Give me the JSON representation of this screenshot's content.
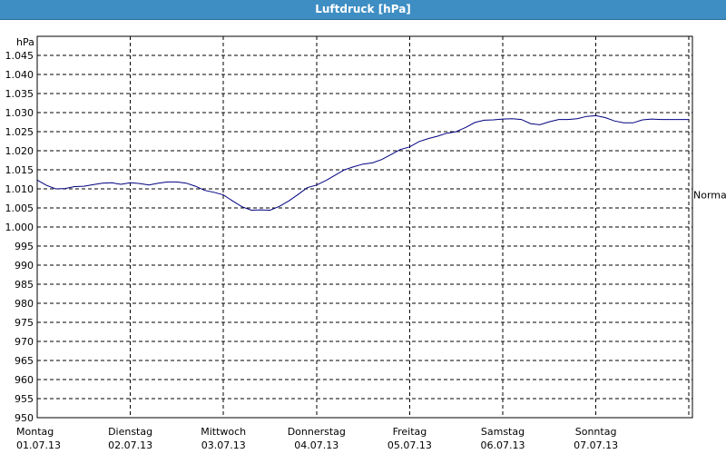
{
  "window": {
    "title": "Luftdruck [hPa]"
  },
  "chart_data": {
    "type": "line",
    "title": "Luftdruck [hPa]",
    "ylabel": "hPa",
    "ylim": [
      950,
      1050
    ],
    "yticks": [
      950,
      955,
      960,
      965,
      970,
      975,
      980,
      985,
      990,
      995,
      1000,
      1005,
      1010,
      1015,
      1020,
      1025,
      1030,
      1035,
      1040,
      1045
    ],
    "ytick_labels": [
      "950",
      "955",
      "960",
      "965",
      "970",
      "975",
      "980",
      "985",
      "990",
      "995",
      "1.000",
      "1.005",
      "1.010",
      "1.015",
      "1.020",
      "1.025",
      "1.030",
      "1.035",
      "1.040",
      "1.045"
    ],
    "reference_line": {
      "label": "Normal",
      "value": 1008.5
    },
    "x_days": [
      {
        "day": "Montag",
        "date": "01.07.13"
      },
      {
        "day": "Dienstag",
        "date": "02.07.13"
      },
      {
        "day": "Mittwoch",
        "date": "03.07.13"
      },
      {
        "day": "Donnerstag",
        "date": "04.07.13"
      },
      {
        "day": "Freitag",
        "date": "05.07.13"
      },
      {
        "day": "Samstag",
        "date": "06.07.13"
      },
      {
        "day": "Sonntag",
        "date": "07.07.13"
      }
    ],
    "grid": true,
    "line_color": "#000080",
    "series": [
      {
        "x": [
          0,
          0.1,
          0.2,
          0.3,
          0.4,
          0.5,
          0.6,
          0.7,
          0.8,
          0.9,
          1.0,
          1.1,
          1.2,
          1.3,
          1.4,
          1.5,
          1.6,
          1.7,
          1.8,
          1.9,
          2.0,
          2.1,
          2.2,
          2.3,
          2.4,
          2.5,
          2.6,
          2.7,
          2.8,
          2.9,
          3.0,
          3.1,
          3.2,
          3.3,
          3.4,
          3.5,
          3.6,
          3.7,
          3.8,
          3.9,
          4.0,
          4.1,
          4.2,
          4.3,
          4.4,
          4.5,
          4.6,
          4.7,
          4.8,
          4.9,
          5.0,
          5.1,
          5.2,
          5.3,
          5.4,
          5.5,
          5.6,
          5.7,
          5.8,
          5.9,
          6.0,
          6.1,
          6.2,
          6.3,
          6.4,
          6.5,
          6.6,
          6.7,
          6.8,
          6.9,
          7.0
        ],
        "values": [
          1012.3,
          1010.9,
          1010.0,
          1010.1,
          1010.6,
          1010.7,
          1011.1,
          1011.5,
          1011.6,
          1011.2,
          1011.6,
          1011.4,
          1011.0,
          1011.5,
          1011.8,
          1011.8,
          1011.5,
          1010.7,
          1009.6,
          1009.1,
          1008.4,
          1006.8,
          1005.3,
          1004.4,
          1004.5,
          1004.4,
          1005.4,
          1006.8,
          1008.5,
          1010.3,
          1011.0,
          1012.2,
          1013.6,
          1015.0,
          1015.8,
          1016.5,
          1016.8,
          1017.7,
          1019.0,
          1020.3,
          1021.0,
          1022.4,
          1023.2,
          1023.8,
          1024.6,
          1025.0,
          1026.1,
          1027.4,
          1028.0,
          1028.1,
          1028.3,
          1028.4,
          1028.2,
          1027.1,
          1026.8,
          1027.6,
          1028.2,
          1028.2,
          1028.4,
          1029.0,
          1029.2,
          1028.7,
          1027.8,
          1027.3,
          1027.3,
          1028.1,
          1028.3,
          1028.2,
          1028.2,
          1028.2,
          1028.2
        ]
      }
    ]
  }
}
